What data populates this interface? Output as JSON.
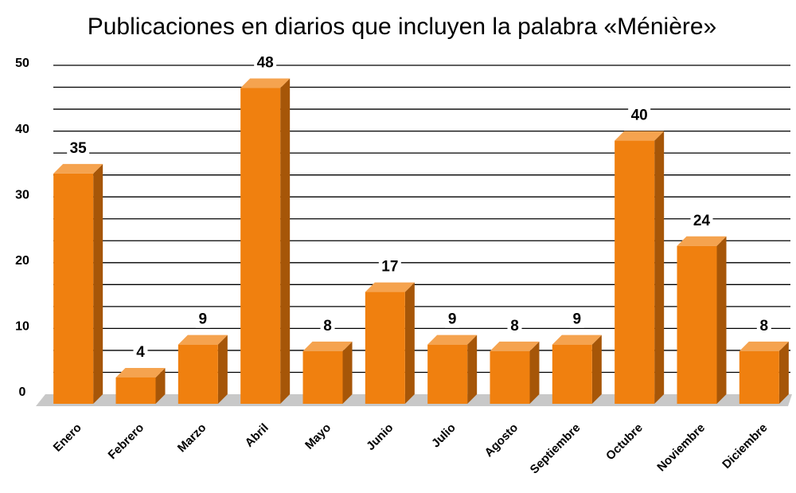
{
  "chart_data": {
    "type": "bar3d",
    "title": "Publicaciones en diarios que incluyen la palabra «Ménière»",
    "categories": [
      "Enero",
      "Febrero",
      "Marzo",
      "Abril",
      "Mayo",
      "Junio",
      "Julio",
      "Agosto",
      "Septiembre",
      "Octubre",
      "Noviembre",
      "Diciembre"
    ],
    "values": [
      35,
      4,
      9,
      48,
      8,
      17,
      9,
      8,
      9,
      40,
      24,
      8
    ],
    "color": "#f0800f",
    "ylim": [
      0,
      50
    ],
    "yticks": [
      0,
      10,
      20,
      30,
      40,
      50
    ],
    "grid": true,
    "minor_gridlines": 2
  }
}
